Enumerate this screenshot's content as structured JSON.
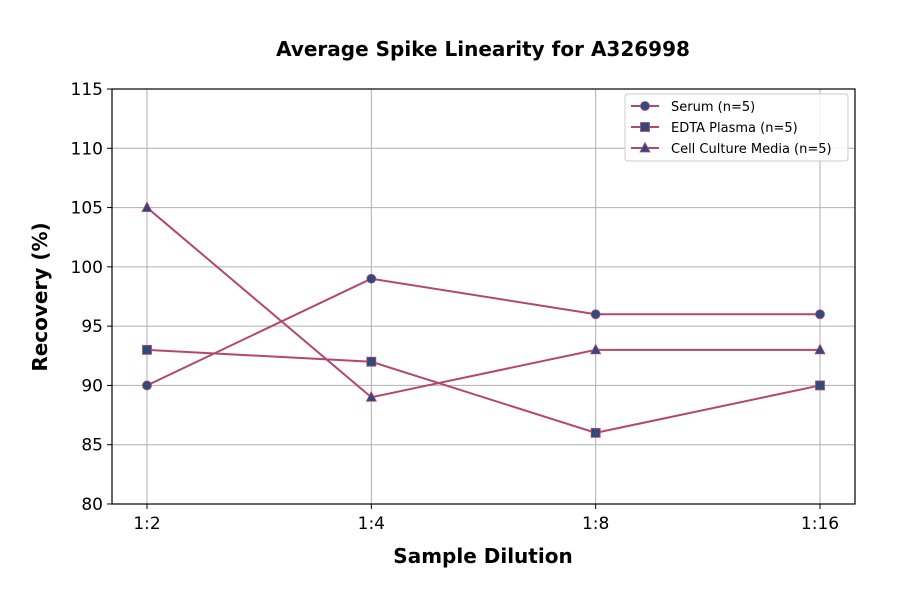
{
  "chart_data": {
    "type": "line",
    "title": "Average Spike Linearity for A326998",
    "xlabel": "Sample Dilution",
    "ylabel": "Recovery (%)",
    "categories": [
      "1:2",
      "1:4",
      "1:8",
      "1:16"
    ],
    "ylim": [
      80,
      115
    ],
    "yticks": [
      80,
      85,
      90,
      95,
      100,
      105,
      110,
      115
    ],
    "grid": true,
    "legend_position": "top-right",
    "line_color": "#b5476f",
    "marker_color": "#2f4b7c",
    "series": [
      {
        "name": "Serum (n=5)",
        "marker": "circle",
        "values": [
          90,
          99,
          96,
          96
        ]
      },
      {
        "name": "EDTA Plasma (n=5)",
        "marker": "square",
        "values": [
          93,
          92,
          86,
          90
        ]
      },
      {
        "name": "Cell Culture Media (n=5)",
        "marker": "triangle",
        "values": [
          105,
          89,
          93,
          93
        ]
      }
    ]
  }
}
